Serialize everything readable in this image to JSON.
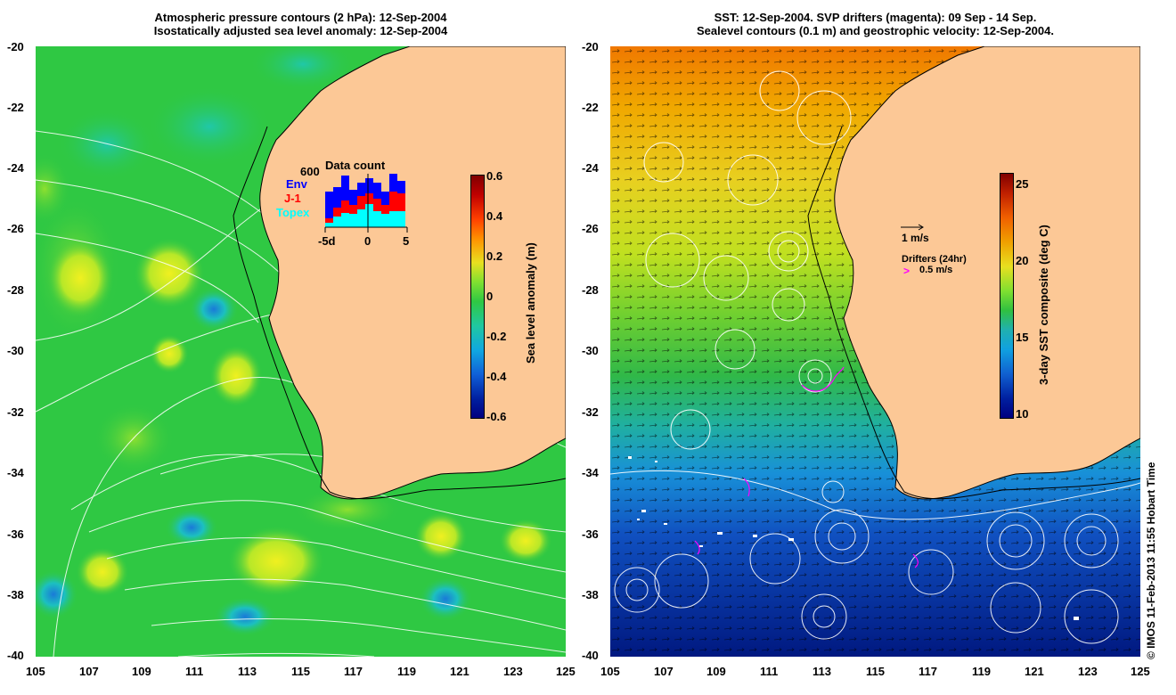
{
  "left_panel": {
    "title_line1": "Atmospheric pressure contours (2 hPa): 12-Sep-2004",
    "title_line2": "Isostatically adjusted sea level anomaly: 12-Sep-2004",
    "colorbar": {
      "label": "Sea level anomaly (m)",
      "ticks": [
        "0.6",
        "0.4",
        "0.2",
        "0",
        "-0.2",
        "-0.4",
        "-0.6"
      ],
      "range": [
        -0.6,
        0.6
      ]
    },
    "inset": {
      "title": "Data count",
      "max_label": "600",
      "legend": [
        {
          "label": "Env",
          "color": "#0000ff"
        },
        {
          "label": "J-1",
          "color": "#ff0000"
        },
        {
          "label": "Topex",
          "color": "#00ffff"
        }
      ],
      "x_ticks": [
        "-5d",
        "0",
        "5"
      ]
    }
  },
  "right_panel": {
    "title_line1": "SST: 12-Sep-2004. SVP drifters (magenta): 09 Sep - 14 Sep.",
    "title_line2": "Sealevel contours (0.1 m) and geostrophic velocity: 12-Sep-2004.",
    "velocity_key": "1 m/s",
    "drifters_label": "Drifters (24hr)",
    "drifter_key": "0.5 m/s",
    "colorbar": {
      "label": "3-day SST composite (deg C)",
      "ticks": [
        "25",
        "20",
        "15",
        "10"
      ],
      "range": [
        10,
        26
      ]
    }
  },
  "axes": {
    "lat_ticks": [
      "-20",
      "-22",
      "-24",
      "-26",
      "-28",
      "-30",
      "-32",
      "-34",
      "-36",
      "-38",
      "-40"
    ],
    "lon_ticks": [
      "105",
      "107",
      "109",
      "111",
      "113",
      "115",
      "117",
      "119",
      "121",
      "123",
      "125"
    ]
  },
  "credit": "© IMOS 11-Feb-2013 11:55 Hobart Time",
  "colors": {
    "land": "#fcc896",
    "ocean_green": "#2fc843",
    "coast": "#000000",
    "contour": "#ffffff",
    "drifter": "#ff00ff"
  }
}
